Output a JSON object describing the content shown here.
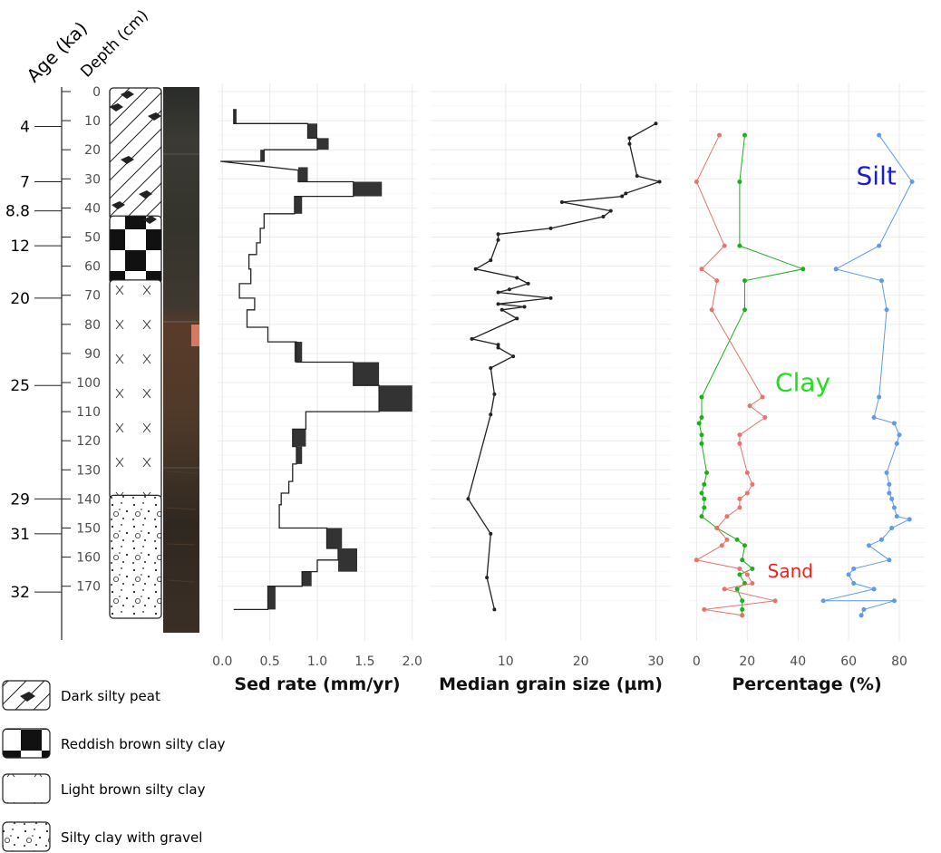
{
  "headers": {
    "age": "Age (ka)",
    "depth": "Depth (cm)"
  },
  "depth_ticks": [
    0,
    10,
    20,
    30,
    40,
    50,
    60,
    70,
    80,
    90,
    100,
    110,
    120,
    130,
    140,
    150,
    160,
    170
  ],
  "age_labels": [
    {
      "age": "4",
      "depth": 12
    },
    {
      "age": "7",
      "depth": 31
    },
    {
      "age": "8.8",
      "depth": 41
    },
    {
      "age": "12",
      "depth": 53
    },
    {
      "age": "20",
      "depth": 71
    },
    {
      "age": "25",
      "depth": 101
    },
    {
      "age": "29",
      "depth": 140
    },
    {
      "age": "31",
      "depth": 152
    },
    {
      "age": "32",
      "depth": 172
    }
  ],
  "lithology": [
    {
      "unit": "Dark silty peat",
      "top": 0,
      "bottom": 44,
      "pattern": "peat"
    },
    {
      "unit": "Reddish brown silty clay",
      "top": 44,
      "bottom": 66,
      "pattern": "checker"
    },
    {
      "unit": "Light brown silty clay",
      "top": 66,
      "bottom": 140,
      "pattern": "cross"
    },
    {
      "unit": "Silty clay with gravel",
      "top": 140,
      "bottom": 181,
      "pattern": "gravel"
    }
  ],
  "legend": [
    {
      "label": "Dark silty peat",
      "pattern": "peat"
    },
    {
      "label": "Reddish brown silty clay",
      "pattern": "checker"
    },
    {
      "label": "Light brown silty clay",
      "pattern": "cross"
    },
    {
      "label": "Silty clay with gravel",
      "pattern": "gravel"
    }
  ],
  "chart_data": [
    {
      "type": "line",
      "xlabel": "Sed rate (mm/yr)",
      "xlim": [
        -0.05,
        2.05
      ],
      "xticks": [
        "0.0",
        "0.5",
        "1.0",
        "1.5",
        "2.0"
      ],
      "xtick_values": [
        0,
        0.5,
        1.0,
        1.5,
        2.0
      ],
      "ylim": [
        0,
        181
      ],
      "color": "#222222",
      "points": [
        [
          0.12,
          6
        ],
        [
          0.12,
          11
        ],
        [
          0.9,
          11
        ],
        [
          0.9,
          16
        ],
        [
          1.0,
          16
        ],
        [
          1.0,
          20
        ],
        [
          0.44,
          20
        ],
        [
          0.44,
          24
        ],
        [
          -0.02,
          24
        ],
        [
          0.8,
          27
        ],
        [
          0.8,
          31
        ],
        [
          1.38,
          31
        ],
        [
          1.38,
          36
        ],
        [
          0.76,
          36
        ],
        [
          0.76,
          42
        ],
        [
          0.44,
          42
        ],
        [
          0.44,
          47
        ],
        [
          0.4,
          47
        ],
        [
          0.4,
          52
        ],
        [
          0.36,
          52
        ],
        [
          0.36,
          56
        ],
        [
          0.28,
          56
        ],
        [
          0.28,
          61
        ],
        [
          0.3,
          61
        ],
        [
          0.3,
          66
        ],
        [
          0.18,
          66
        ],
        [
          0.18,
          71
        ],
        [
          0.34,
          71
        ],
        [
          0.34,
          75
        ],
        [
          0.26,
          75
        ],
        [
          0.26,
          81
        ],
        [
          0.48,
          81
        ],
        [
          0.48,
          86
        ],
        [
          0.78,
          86
        ],
        [
          0.78,
          93
        ],
        [
          1.38,
          93
        ],
        [
          1.38,
          101
        ],
        [
          1.65,
          101
        ],
        [
          1.65,
          110
        ],
        [
          0.88,
          110
        ],
        [
          0.88,
          116
        ],
        [
          0.74,
          116
        ],
        [
          0.74,
          122
        ],
        [
          0.78,
          122
        ],
        [
          0.78,
          128
        ],
        [
          0.74,
          128
        ],
        [
          0.74,
          134
        ],
        [
          0.7,
          134
        ],
        [
          0.7,
          138
        ],
        [
          0.62,
          138
        ],
        [
          0.62,
          142
        ],
        [
          0.6,
          142
        ],
        [
          0.6,
          150
        ],
        [
          1.1,
          150
        ],
        [
          1.1,
          157
        ],
        [
          1.22,
          157
        ],
        [
          1.22,
          161
        ],
        [
          1.0,
          161
        ],
        [
          1.0,
          165
        ],
        [
          0.84,
          165
        ],
        [
          0.84,
          170
        ],
        [
          0.48,
          170
        ],
        [
          0.48,
          178
        ],
        [
          0.12,
          178
        ]
      ],
      "bars": [
        {
          "x0": 0.12,
          "x1": 0.15,
          "top": 6,
          "bottom": 11
        },
        {
          "x0": 0.9,
          "x1": 1.0,
          "top": 11,
          "bottom": 16
        },
        {
          "x0": 1.0,
          "x1": 1.12,
          "top": 16,
          "bottom": 20
        },
        {
          "x0": 0.4,
          "x1": 0.44,
          "top": 20,
          "bottom": 24
        },
        {
          "x0": 0.8,
          "x1": 0.9,
          "top": 26,
          "bottom": 31
        },
        {
          "x0": 1.38,
          "x1": 1.68,
          "top": 31,
          "bottom": 36
        },
        {
          "x0": 0.76,
          "x1": 0.84,
          "top": 36,
          "bottom": 42
        },
        {
          "x0": 0.76,
          "x1": 0.84,
          "top": 86,
          "bottom": 93
        },
        {
          "x0": 1.38,
          "x1": 1.65,
          "top": 93,
          "bottom": 101
        },
        {
          "x0": 1.65,
          "x1": 2.0,
          "top": 101,
          "bottom": 110
        },
        {
          "x0": 0.74,
          "x1": 0.88,
          "top": 116,
          "bottom": 122
        },
        {
          "x0": 0.78,
          "x1": 0.84,
          "top": 122,
          "bottom": 128
        },
        {
          "x0": 1.1,
          "x1": 1.26,
          "top": 150,
          "bottom": 157
        },
        {
          "x0": 1.22,
          "x1": 1.42,
          "top": 157,
          "bottom": 165
        },
        {
          "x0": 0.84,
          "x1": 0.94,
          "top": 165,
          "bottom": 170
        },
        {
          "x0": 0.48,
          "x1": 0.56,
          "top": 170,
          "bottom": 178
        }
      ]
    },
    {
      "type": "line",
      "xlabel": "Median grain size (µm)",
      "xlim": [
        0,
        32
      ],
      "xticks": [
        "10",
        "20",
        "30"
      ],
      "xtick_values": [
        10,
        20,
        30
      ],
      "ylim": [
        0,
        181
      ],
      "color": "#222222",
      "points": [
        [
          30,
          11
        ],
        [
          26.5,
          16
        ],
        [
          26.5,
          18
        ],
        [
          27.5,
          29
        ],
        [
          30.5,
          31
        ],
        [
          26,
          35
        ],
        [
          25.5,
          36
        ],
        [
          17.5,
          38
        ],
        [
          24,
          41
        ],
        [
          23,
          43
        ],
        [
          16,
          47
        ],
        [
          9,
          49
        ],
        [
          9,
          51
        ],
        [
          8,
          58
        ],
        [
          6,
          61
        ],
        [
          11.5,
          64
        ],
        [
          13,
          66
        ],
        [
          10.5,
          68
        ],
        [
          9,
          69
        ],
        [
          16,
          71
        ],
        [
          9,
          73
        ],
        [
          12.5,
          74
        ],
        [
          9.5,
          75
        ],
        [
          11.5,
          78
        ],
        [
          5.5,
          85
        ],
        [
          9,
          87
        ],
        [
          9,
          88
        ],
        [
          11,
          91
        ],
        [
          8,
          95
        ],
        [
          8.5,
          104
        ],
        [
          8,
          111
        ],
        [
          5,
          140
        ],
        [
          8,
          152
        ],
        [
          7.5,
          167
        ],
        [
          8.5,
          178
        ]
      ]
    },
    {
      "type": "line",
      "xlabel": "Percentage (%)",
      "xlim": [
        -3,
        90
      ],
      "xticks": [
        "0",
        "20",
        "40",
        "60",
        "80"
      ],
      "xtick_values": [
        0,
        20,
        40,
        60,
        80
      ],
      "ylim": [
        0,
        181
      ],
      "series": [
        {
          "name": "Silt",
          "label_at": [
            63,
            32
          ],
          "color": "#5b9bea",
          "label_color": "#1a1adb",
          "label_size": 28,
          "points": [
            [
              72,
              15
            ],
            [
              85,
              31
            ],
            [
              72,
              53
            ],
            [
              55,
              61
            ],
            [
              73,
              65
            ],
            [
              75,
              75
            ],
            [
              72,
              105
            ],
            [
              70,
              112
            ],
            [
              78,
              114
            ],
            [
              80,
              118
            ],
            [
              79,
              121
            ],
            [
              75,
              131
            ],
            [
              76,
              135
            ],
            [
              76,
              138
            ],
            [
              77,
              140
            ],
            [
              78,
              143
            ],
            [
              79,
              146
            ],
            [
              84,
              147
            ],
            [
              77,
              150
            ],
            [
              73,
              154
            ],
            [
              68,
              156
            ],
            [
              76,
              161
            ],
            [
              62,
              164
            ],
            [
              60,
              166
            ],
            [
              62,
              169
            ],
            [
              70,
              171
            ],
            [
              50,
              175
            ],
            [
              78,
              175
            ],
            [
              66,
              178
            ],
            [
              65,
              180
            ]
          ]
        },
        {
          "name": "Clay",
          "label_at": [
            31,
            103
          ],
          "color": "#1cb01c",
          "label_color": "#22dd22",
          "label_size": 28,
          "points": [
            [
              19,
              15
            ],
            [
              17,
              31
            ],
            [
              17,
              53
            ],
            [
              42,
              61
            ],
            [
              19,
              65
            ],
            [
              19,
              75
            ],
            [
              2,
              105
            ],
            [
              2,
              112
            ],
            [
              1,
              114
            ],
            [
              2,
              118
            ],
            [
              2,
              121
            ],
            [
              4,
              131
            ],
            [
              3,
              135
            ],
            [
              2,
              138
            ],
            [
              3,
              140
            ],
            [
              3,
              143
            ],
            [
              2,
              146
            ],
            [
              8,
              150
            ],
            [
              16,
              154
            ],
            [
              19,
              156
            ],
            [
              18,
              161
            ],
            [
              22,
              164
            ],
            [
              17,
              166
            ],
            [
              19,
              169
            ],
            [
              16,
              171
            ],
            [
              18,
              175
            ],
            [
              18,
              178
            ],
            [
              18,
              180
            ]
          ]
        },
        {
          "name": "Sand",
          "label_at": [
            28,
            167
          ],
          "color": "#e8736b",
          "label_color": "#ee2222",
          "label_size": 20,
          "points": [
            [
              9,
              15
            ],
            [
              0,
              31
            ],
            [
              11,
              53
            ],
            [
              2,
              61
            ],
            [
              8,
              65
            ],
            [
              6,
              75
            ],
            [
              26,
              105
            ],
            [
              21,
              108
            ],
            [
              27,
              112
            ],
            [
              17,
              118
            ],
            [
              17,
              121
            ],
            [
              20,
              131
            ],
            [
              22,
              135
            ],
            [
              20,
              138
            ],
            [
              17,
              140
            ],
            [
              17,
              143
            ],
            [
              12,
              146
            ],
            [
              8,
              150
            ],
            [
              12,
              154
            ],
            [
              10,
              156
            ],
            [
              0,
              161
            ],
            [
              17,
              164
            ],
            [
              20,
              166
            ],
            [
              22,
              169
            ],
            [
              11,
              171
            ],
            [
              31,
              175
            ],
            [
              3,
              178
            ],
            [
              18,
              180
            ]
          ]
        }
      ]
    }
  ]
}
